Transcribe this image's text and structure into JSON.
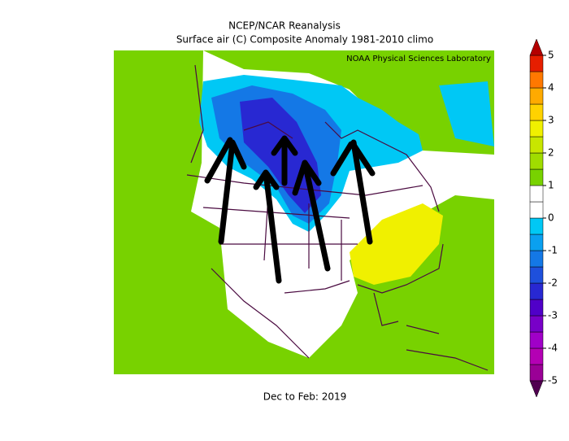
{
  "header": {
    "title": "NCEP/NCAR Reanalysis",
    "subtitle": "Surface air (C) Composite Anomaly 1981-2010 climo",
    "credit": "NOAA Physical Sciences Laboratory"
  },
  "footer": {
    "period": "Dec to Feb: 2019"
  },
  "colorbar": {
    "ticks": [
      5,
      4,
      3,
      2,
      1,
      0,
      -1,
      -2,
      -3,
      -4,
      -5
    ],
    "range": [
      -5,
      5
    ],
    "colors": [
      "#9a0096",
      "#b400b4",
      "#a000c8",
      "#7800c8",
      "#5000c8",
      "#2828d2",
      "#1e50dc",
      "#1478e6",
      "#0aa0f0",
      "#00c8f5",
      "#ffffff",
      "#ffffff",
      "#78d200",
      "#a0dc00",
      "#c8e600",
      "#f0f000",
      "#ffd200",
      "#ffaa00",
      "#ff7800",
      "#e61e00"
    ],
    "end_colors": [
      "#500050",
      "#b40000"
    ]
  }
}
